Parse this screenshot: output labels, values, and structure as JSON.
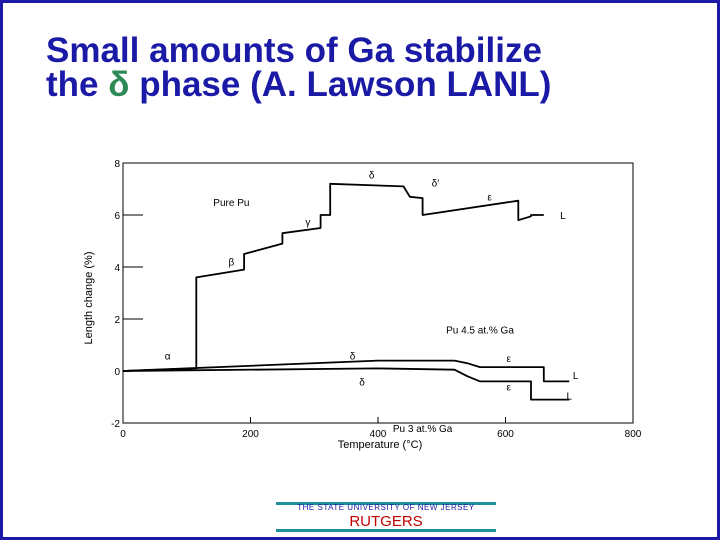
{
  "slide": {
    "title_line1": "Small amounts of Ga stabilize",
    "title_line2_prefix": "the ",
    "title_greek": "δ",
    "title_line2_suffix": " phase (A. Lawson LANL)",
    "footer_university": "THE STATE UNIVERSITY OF NEW JERSEY",
    "footer_brand": "RUTGERS",
    "colors": {
      "title": "#1a1aa6",
      "greek": "#2e8b57",
      "frame": "#1a1aa6",
      "footer_rule": "#1f8f99",
      "brand": "#c00000"
    }
  },
  "chart_data": {
    "type": "line",
    "xlabel": "Temperature (°C)",
    "ylabel": "Length change (%)",
    "xlim": [
      0,
      800
    ],
    "ylim": [
      -2,
      8
    ],
    "xticks": [
      0,
      200,
      400,
      600,
      800
    ],
    "yticks": [
      -2,
      0,
      2,
      4,
      6,
      8
    ],
    "grid": false,
    "series": [
      {
        "name": "Pure Pu",
        "x": [
          0,
          115,
          115,
          190,
          190,
          250,
          250,
          310,
          310,
          325,
          325,
          440,
          445,
          450,
          470,
          470,
          620,
          620,
          640,
          640,
          660
        ],
        "y": [
          0,
          0.1,
          3.6,
          3.9,
          4.5,
          4.9,
          5.3,
          5.5,
          6.0,
          6.0,
          7.2,
          7.1,
          6.9,
          6.7,
          6.65,
          6.0,
          6.55,
          5.8,
          5.95,
          6.0,
          6.0
        ]
      },
      {
        "name": "Pu 4.5 at.% Ga",
        "x": [
          0,
          400,
          520,
          540,
          560,
          600,
          660,
          660,
          700
        ],
        "y": [
          0,
          0.4,
          0.4,
          0.3,
          0.15,
          0.15,
          0.15,
          -0.4,
          -0.4
        ]
      },
      {
        "name": "Pu 3 at.% Ga",
        "x": [
          0,
          400,
          520,
          540,
          560,
          600,
          640,
          640,
          700
        ],
        "y": [
          0,
          0.1,
          0.05,
          -0.2,
          -0.4,
          -0.4,
          -0.4,
          -1.1,
          -1.1
        ]
      }
    ],
    "annotations": [
      {
        "text": "Pure Pu",
        "x": 170,
        "y": 6.35
      },
      {
        "text": "α",
        "x": 70,
        "y": 0.45
      },
      {
        "text": "β",
        "x": 170,
        "y": 4.05
      },
      {
        "text": "γ",
        "x": 290,
        "y": 5.6
      },
      {
        "text": "δ",
        "x": 390,
        "y": 7.4
      },
      {
        "text": "δ′",
        "x": 490,
        "y": 7.1
      },
      {
        "text": "ε",
        "x": 575,
        "y": 6.55
      },
      {
        "text": "L",
        "x": 690,
        "y": 5.85
      },
      {
        "text": "Pu 4.5 at.% Ga",
        "x": 560,
        "y": 1.45
      },
      {
        "text": "δ",
        "x": 360,
        "y": 0.45
      },
      {
        "text": "ε",
        "x": 605,
        "y": 0.35
      },
      {
        "text": "L",
        "x": 710,
        "y": -0.3
      },
      {
        "text": "δ",
        "x": 375,
        "y": -0.55
      },
      {
        "text": "ε",
        "x": 605,
        "y": -0.75
      },
      {
        "text": "L",
        "x": 700,
        "y": -1.1
      },
      {
        "text": "Pu 3 at.% Ga",
        "x": 470,
        "y": -2.35
      }
    ]
  }
}
